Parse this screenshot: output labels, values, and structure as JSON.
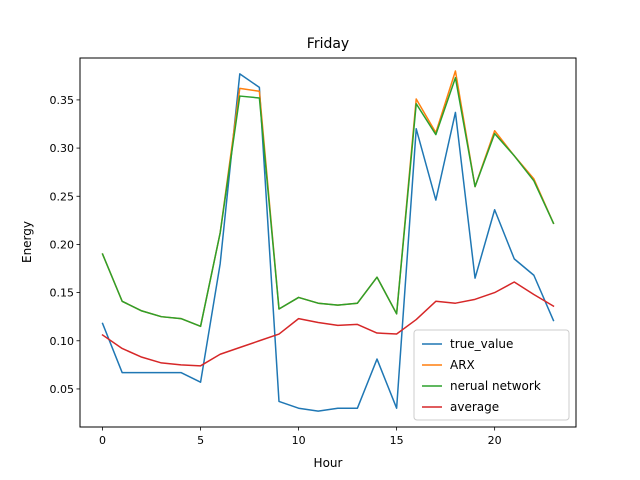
{
  "chart_data": {
    "type": "line",
    "title": "Friday",
    "xlabel": "Hour",
    "ylabel": "Energy",
    "xlim": [
      -1.15,
      24.15
    ],
    "ylim": [
      0.0105,
      0.3935
    ],
    "xticks": [
      0,
      5,
      10,
      15,
      20
    ],
    "xtick_labels": [
      "0",
      "5",
      "10",
      "15",
      "20"
    ],
    "yticks": [
      0.05,
      0.1,
      0.15,
      0.2,
      0.25,
      0.3,
      0.35
    ],
    "ytick_labels": [
      "0.05",
      "0.10",
      "0.15",
      "0.20",
      "0.25",
      "0.30",
      "0.35"
    ],
    "grid": false,
    "legend_position": "lower-right",
    "x": [
      0,
      1,
      2,
      3,
      4,
      5,
      6,
      7,
      8,
      9,
      10,
      11,
      12,
      13,
      14,
      15,
      16,
      17,
      18,
      19,
      20,
      21,
      22,
      23
    ],
    "series": [
      {
        "name": "true_value",
        "color": "#1f77b4",
        "values": [
          0.118,
          0.067,
          0.067,
          0.067,
          0.067,
          0.057,
          0.18,
          0.377,
          0.363,
          0.037,
          0.03,
          0.027,
          0.03,
          0.03,
          0.081,
          0.03,
          0.32,
          0.246,
          0.337,
          0.165,
          0.236,
          0.185,
          0.168,
          0.121
        ]
      },
      {
        "name": "ARX",
        "color": "#ff7f0e",
        "values": [
          0.19,
          0.141,
          0.131,
          0.125,
          0.123,
          0.115,
          0.212,
          0.362,
          0.359,
          0.133,
          0.145,
          0.139,
          0.137,
          0.139,
          0.166,
          0.128,
          0.351,
          0.316,
          0.38,
          0.26,
          0.318,
          0.292,
          0.268,
          0.222
        ]
      },
      {
        "name": "nerual network",
        "color": "#2ca02c",
        "values": [
          0.19,
          0.141,
          0.131,
          0.125,
          0.123,
          0.115,
          0.212,
          0.354,
          0.352,
          0.133,
          0.145,
          0.139,
          0.137,
          0.139,
          0.166,
          0.128,
          0.346,
          0.314,
          0.373,
          0.26,
          0.315,
          0.292,
          0.266,
          0.222
        ]
      },
      {
        "name": "average",
        "color": "#d62728",
        "values": [
          0.106,
          0.092,
          0.083,
          0.077,
          0.075,
          0.074,
          0.086,
          0.093,
          0.1,
          0.107,
          0.123,
          0.119,
          0.116,
          0.117,
          0.108,
          0.107,
          0.122,
          0.141,
          0.139,
          0.143,
          0.15,
          0.161,
          0.148,
          0.136
        ]
      }
    ]
  }
}
